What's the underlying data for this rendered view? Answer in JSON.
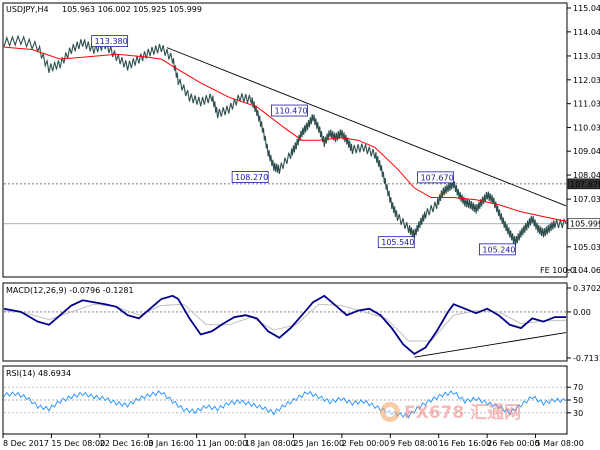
{
  "header": {
    "symbol": "USDJPY,H4",
    "ohlc": "105.963 106.002 105.925 105.999"
  },
  "chart_data": [
    {
      "type": "line",
      "title": "USDJPY,H4",
      "ylim": [
        104.06,
        115.4
      ],
      "yticks": [
        "115.040",
        "114.040",
        "113.030",
        "112.030",
        "111.030",
        "110.030",
        "109.040",
        "108.040",
        "107.030",
        "106.030",
        "105.030",
        "104.060"
      ],
      "price_tags": [
        {
          "label": "107.670",
          "value": 107.67
        },
        {
          "label": "105.999",
          "value": 105.999
        }
      ],
      "level_lines": [
        107.67,
        105.999
      ],
      "annotations": [
        {
          "label": "113.380",
          "value": 113.38,
          "t": 0.22
        },
        {
          "label": "110.470",
          "value": 110.47,
          "t": 0.54
        },
        {
          "label": "108.270",
          "value": 108.27,
          "t": 0.47
        },
        {
          "label": "107.670",
          "value": 107.67,
          "t": 0.8
        },
        {
          "label": "105.540",
          "value": 105.54,
          "t": 0.73
        },
        {
          "label": "105.240",
          "value": 105.24,
          "t": 0.91
        }
      ],
      "trendline": [
        [
          0.29,
          113.38
        ],
        [
          1.0,
          106.75
        ]
      ],
      "price_path": [
        [
          0.0,
          113.6
        ],
        [
          0.03,
          113.7
        ],
        [
          0.06,
          113.4
        ],
        [
          0.08,
          112.5
        ],
        [
          0.1,
          112.7
        ],
        [
          0.12,
          113.3
        ],
        [
          0.14,
          113.6
        ],
        [
          0.16,
          113.3
        ],
        [
          0.18,
          113.5
        ],
        [
          0.2,
          113.0
        ],
        [
          0.22,
          112.6
        ],
        [
          0.24,
          112.9
        ],
        [
          0.26,
          113.2
        ],
        [
          0.28,
          113.38
        ],
        [
          0.3,
          112.9
        ],
        [
          0.31,
          112.0
        ],
        [
          0.33,
          111.3
        ],
        [
          0.35,
          111.1
        ],
        [
          0.37,
          111.3
        ],
        [
          0.38,
          110.6
        ],
        [
          0.4,
          110.8
        ],
        [
          0.42,
          111.3
        ],
        [
          0.44,
          111.2
        ],
        [
          0.45,
          110.7
        ],
        [
          0.46,
          110.0
        ],
        [
          0.47,
          109.0
        ],
        [
          0.48,
          108.4
        ],
        [
          0.49,
          108.27
        ],
        [
          0.51,
          108.9
        ],
        [
          0.52,
          109.3
        ],
        [
          0.53,
          109.8
        ],
        [
          0.54,
          110.1
        ],
        [
          0.55,
          110.47
        ],
        [
          0.56,
          110.0
        ],
        [
          0.57,
          109.4
        ],
        [
          0.58,
          109.8
        ],
        [
          0.59,
          109.6
        ],
        [
          0.6,
          109.8
        ],
        [
          0.61,
          109.5
        ],
        [
          0.62,
          109.1
        ],
        [
          0.64,
          109.2
        ],
        [
          0.66,
          108.9
        ],
        [
          0.67,
          108.4
        ],
        [
          0.68,
          107.6
        ],
        [
          0.69,
          106.8
        ],
        [
          0.7,
          106.3
        ],
        [
          0.72,
          105.8
        ],
        [
          0.73,
          105.54
        ],
        [
          0.74,
          106.0
        ],
        [
          0.75,
          106.4
        ],
        [
          0.77,
          106.8
        ],
        [
          0.78,
          107.3
        ],
        [
          0.79,
          107.5
        ],
        [
          0.8,
          107.67
        ],
        [
          0.81,
          107.2
        ],
        [
          0.82,
          106.9
        ],
        [
          0.83,
          106.8
        ],
        [
          0.84,
          106.6
        ],
        [
          0.85,
          106.9
        ],
        [
          0.86,
          107.2
        ],
        [
          0.87,
          107.0
        ],
        [
          0.88,
          106.5
        ],
        [
          0.89,
          106.0
        ],
        [
          0.9,
          105.6
        ],
        [
          0.91,
          105.24
        ],
        [
          0.92,
          105.6
        ],
        [
          0.93,
          105.9
        ],
        [
          0.94,
          106.2
        ],
        [
          0.95,
          105.8
        ],
        [
          0.96,
          105.6
        ],
        [
          0.97,
          105.8
        ],
        [
          0.98,
          106.0
        ],
        [
          1.0,
          106.0
        ]
      ],
      "ma_path": [
        [
          0.0,
          113.4
        ],
        [
          0.05,
          113.3
        ],
        [
          0.1,
          112.9
        ],
        [
          0.15,
          113.0
        ],
        [
          0.2,
          113.1
        ],
        [
          0.25,
          113.0
        ],
        [
          0.28,
          112.9
        ],
        [
          0.3,
          112.6
        ],
        [
          0.35,
          111.9
        ],
        [
          0.4,
          111.3
        ],
        [
          0.45,
          110.9
        ],
        [
          0.5,
          110.0
        ],
        [
          0.53,
          109.5
        ],
        [
          0.56,
          109.5
        ],
        [
          0.6,
          109.6
        ],
        [
          0.63,
          109.5
        ],
        [
          0.66,
          109.2
        ],
        [
          0.7,
          108.3
        ],
        [
          0.73,
          107.5
        ],
        [
          0.76,
          107.1
        ],
        [
          0.8,
          107.1
        ],
        [
          0.84,
          107.0
        ],
        [
          0.88,
          106.8
        ],
        [
          0.92,
          106.5
        ],
        [
          0.96,
          106.3
        ],
        [
          1.0,
          106.1
        ]
      ],
      "watermark": "FE 100.0"
    },
    {
      "type": "line",
      "title": "MACD(12,26,9) -0.0796 -0.1281",
      "ylim": [
        -0.7131,
        0.3702
      ],
      "yticks": [
        "0.3702",
        "0.00",
        "-0.7131"
      ],
      "zero_line": 0.0,
      "macd_path": [
        [
          0.0,
          0.05
        ],
        [
          0.03,
          0.0
        ],
        [
          0.06,
          -0.15
        ],
        [
          0.08,
          -0.2
        ],
        [
          0.1,
          -0.05
        ],
        [
          0.12,
          0.1
        ],
        [
          0.14,
          0.18
        ],
        [
          0.16,
          0.15
        ],
        [
          0.18,
          0.12
        ],
        [
          0.2,
          0.08
        ],
        [
          0.22,
          -0.05
        ],
        [
          0.24,
          -0.1
        ],
        [
          0.26,
          0.05
        ],
        [
          0.28,
          0.2
        ],
        [
          0.3,
          0.25
        ],
        [
          0.31,
          0.2
        ],
        [
          0.33,
          -0.1
        ],
        [
          0.35,
          -0.35
        ],
        [
          0.37,
          -0.3
        ],
        [
          0.39,
          -0.18
        ],
        [
          0.41,
          -0.08
        ],
        [
          0.43,
          -0.05
        ],
        [
          0.45,
          -0.1
        ],
        [
          0.47,
          -0.3
        ],
        [
          0.49,
          -0.4
        ],
        [
          0.51,
          -0.25
        ],
        [
          0.53,
          -0.05
        ],
        [
          0.55,
          0.15
        ],
        [
          0.57,
          0.25
        ],
        [
          0.59,
          0.1
        ],
        [
          0.61,
          -0.05
        ],
        [
          0.63,
          0.02
        ],
        [
          0.65,
          0.05
        ],
        [
          0.67,
          -0.05
        ],
        [
          0.69,
          -0.25
        ],
        [
          0.71,
          -0.5
        ],
        [
          0.73,
          -0.65
        ],
        [
          0.75,
          -0.55
        ],
        [
          0.77,
          -0.3
        ],
        [
          0.79,
          0.0
        ],
        [
          0.8,
          0.12
        ],
        [
          0.82,
          0.05
        ],
        [
          0.84,
          -0.02
        ],
        [
          0.86,
          0.05
        ],
        [
          0.88,
          -0.05
        ],
        [
          0.9,
          -0.2
        ],
        [
          0.92,
          -0.25
        ],
        [
          0.94,
          -0.1
        ],
        [
          0.96,
          -0.15
        ],
        [
          0.98,
          -0.08
        ],
        [
          1.0,
          -0.08
        ]
      ],
      "signal_path": [
        [
          0.0,
          0.02
        ],
        [
          0.04,
          -0.02
        ],
        [
          0.08,
          -0.12
        ],
        [
          0.12,
          0.0
        ],
        [
          0.16,
          0.12
        ],
        [
          0.2,
          0.08
        ],
        [
          0.24,
          -0.05
        ],
        [
          0.28,
          0.1
        ],
        [
          0.32,
          0.12
        ],
        [
          0.36,
          -0.2
        ],
        [
          0.4,
          -0.2
        ],
        [
          0.44,
          -0.08
        ],
        [
          0.48,
          -0.28
        ],
        [
          0.52,
          -0.2
        ],
        [
          0.56,
          0.12
        ],
        [
          0.6,
          0.1
        ],
        [
          0.64,
          0.0
        ],
        [
          0.68,
          -0.1
        ],
        [
          0.72,
          -0.45
        ],
        [
          0.76,
          -0.45
        ],
        [
          0.8,
          -0.05
        ],
        [
          0.84,
          0.02
        ],
        [
          0.88,
          0.0
        ],
        [
          0.92,
          -0.18
        ],
        [
          0.96,
          -0.14
        ],
        [
          1.0,
          -0.13
        ]
      ],
      "trendline": [
        [
          0.73,
          -0.7
        ],
        [
          1.0,
          -0.32
        ]
      ]
    },
    {
      "type": "line",
      "title": "RSI(14) 48.6934",
      "ylim": [
        0,
        100
      ],
      "yticks": [
        "70",
        "50",
        "30"
      ],
      "levels": [
        70,
        50,
        30
      ],
      "rsi_path": [
        [
          0.0,
          58
        ],
        [
          0.02,
          60
        ],
        [
          0.04,
          54
        ],
        [
          0.06,
          40
        ],
        [
          0.08,
          36
        ],
        [
          0.1,
          48
        ],
        [
          0.12,
          55
        ],
        [
          0.14,
          60
        ],
        [
          0.16,
          55
        ],
        [
          0.18,
          52
        ],
        [
          0.2,
          45
        ],
        [
          0.22,
          42
        ],
        [
          0.24,
          52
        ],
        [
          0.26,
          58
        ],
        [
          0.28,
          62
        ],
        [
          0.3,
          48
        ],
        [
          0.32,
          35
        ],
        [
          0.34,
          32
        ],
        [
          0.36,
          40
        ],
        [
          0.38,
          36
        ],
        [
          0.4,
          45
        ],
        [
          0.42,
          48
        ],
        [
          0.44,
          43
        ],
        [
          0.46,
          38
        ],
        [
          0.48,
          30
        ],
        [
          0.5,
          42
        ],
        [
          0.52,
          52
        ],
        [
          0.54,
          62
        ],
        [
          0.56,
          55
        ],
        [
          0.58,
          47
        ],
        [
          0.6,
          52
        ],
        [
          0.62,
          45
        ],
        [
          0.64,
          48
        ],
        [
          0.66,
          40
        ],
        [
          0.68,
          32
        ],
        [
          0.7,
          28
        ],
        [
          0.72,
          25
        ],
        [
          0.74,
          40
        ],
        [
          0.76,
          50
        ],
        [
          0.78,
          58
        ],
        [
          0.8,
          62
        ],
        [
          0.82,
          48
        ],
        [
          0.84,
          52
        ],
        [
          0.86,
          45
        ],
        [
          0.88,
          40
        ],
        [
          0.9,
          30
        ],
        [
          0.92,
          42
        ],
        [
          0.94,
          55
        ],
        [
          0.96,
          45
        ],
        [
          0.98,
          50
        ],
        [
          1.0,
          48.7
        ]
      ]
    }
  ],
  "x_axis": {
    "labels": [
      "8 Dec 2017",
      "15 Dec 08:00",
      "22 Dec 16:00",
      "3 Jan 16:00",
      "11 Jan 00:00",
      "18 Jan 08:00",
      "25 Jan 16:00",
      "2 Feb 00:00",
      "9 Feb 08:00",
      "16 Feb 16:00",
      "26 Feb 00:00",
      "5 Mar 08:00"
    ]
  },
  "watermark_logo": "FX678 汇通网",
  "colors": {
    "price": "#2f4f4f",
    "ma": "#ff0000",
    "macd": "#00008b",
    "signal": "#c0c0c0",
    "rsi": "#1e90ff",
    "annotation": "#1a1aa6",
    "tag_bg": "#ffffff"
  }
}
